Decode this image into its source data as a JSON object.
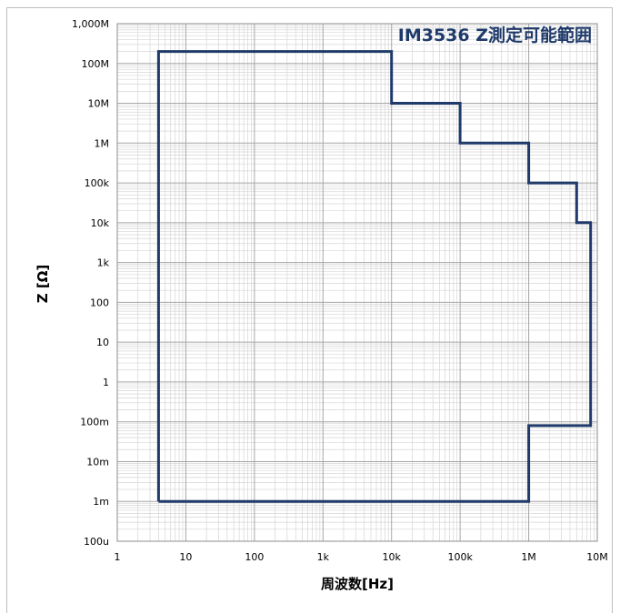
{
  "chart_data": {
    "type": "line",
    "title": "IM3536 Z測定可能範囲",
    "xlabel": "周波数[Hz]",
    "ylabel": "Z [Ω]",
    "x_scale": "log",
    "y_scale": "log",
    "xlim": [
      1,
      10000000
    ],
    "ylim": [
      0.0001,
      1000000000
    ],
    "grid": true,
    "x_tick_values": [
      1,
      10,
      100,
      1000,
      10000,
      100000,
      1000000,
      10000000
    ],
    "x_tick_labels": [
      "1",
      "10",
      "100",
      "1k",
      "10k",
      "100k",
      "1M",
      "10M"
    ],
    "y_tick_values": [
      0.0001,
      0.001,
      0.01,
      0.1,
      1,
      10,
      100,
      1000,
      10000,
      100000,
      1000000,
      10000000,
      100000000,
      1000000000
    ],
    "y_tick_labels": [
      "100u",
      "1m",
      "10m",
      "100m",
      "1",
      "10",
      "100",
      "1k",
      "10k",
      "100k",
      "1M",
      "10M",
      "100M",
      "1,000M"
    ],
    "series": [
      {
        "x": [
          4,
          4,
          10000,
          10000,
          100000,
          100000,
          1000000,
          1000000,
          5000000,
          5000000,
          8000000,
          8000000,
          1000000,
          1000000,
          4
        ],
        "y": [
          0.001,
          200000000,
          200000000,
          10000000,
          10000000,
          1000000,
          1000000,
          100000,
          100000,
          10000,
          10000,
          0.08,
          0.08,
          0.001,
          0.001
        ]
      }
    ],
    "line_color": "#1f3a6a",
    "grid_color_major": "#a6a6a6",
    "grid_color_minor": "#d6d6d6"
  }
}
